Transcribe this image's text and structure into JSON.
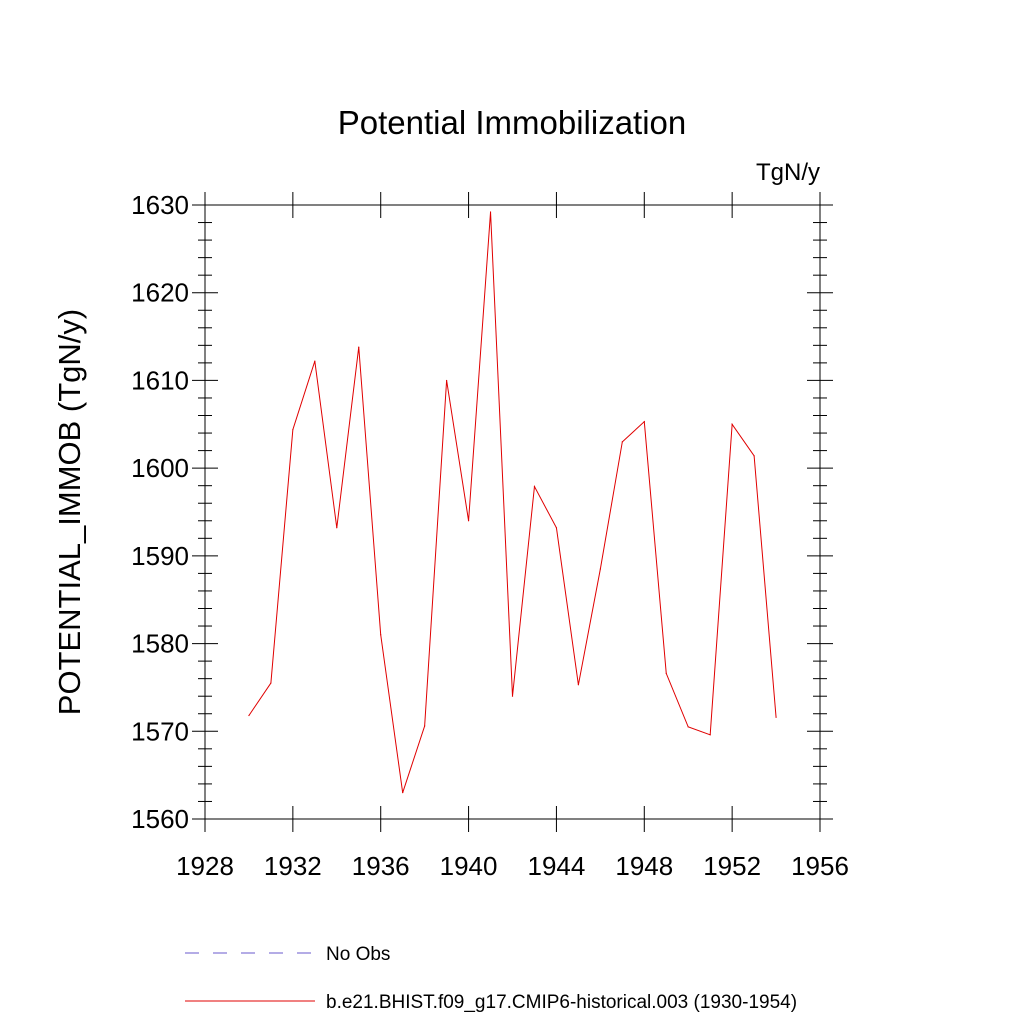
{
  "chart_data": {
    "type": "line",
    "title": "Potential Immobilization",
    "units_label": "TgN/y",
    "ylabel": "POTENTIAL_IMMOB  (TgN/y)",
    "xlabel": "",
    "xlim": [
      1928,
      1956
    ],
    "ylim": [
      1560,
      1630
    ],
    "x_ticks": [
      1928,
      1932,
      1936,
      1940,
      1944,
      1948,
      1952,
      1956
    ],
    "y_ticks": [
      1560,
      1570,
      1580,
      1590,
      1600,
      1610,
      1620,
      1630
    ],
    "grid": false,
    "legend_position": "bottom",
    "series": [
      {
        "name": "No Obs",
        "color": "#6a5acd",
        "dash": "dashed",
        "x": [],
        "values": []
      },
      {
        "name": "b.e21.BHIST.f09_g17.CMIP6-historical.003 (1930-1954)",
        "color": "#e00000",
        "dash": "solid",
        "x": [
          1930,
          1931,
          1932,
          1933,
          1934,
          1935,
          1936,
          1937,
          1938,
          1939,
          1940,
          1941,
          1942,
          1943,
          1944,
          1945,
          1946,
          1947,
          1948,
          1949,
          1950,
          1951,
          1952,
          1953,
          1954
        ],
        "values": [
          1571.8,
          1575.5,
          1604.4,
          1612.2,
          1593.2,
          1613.8,
          1581.0,
          1563.0,
          1570.6,
          1610.0,
          1594.0,
          1629.2,
          1574.0,
          1597.9,
          1593.2,
          1575.3,
          1588.5,
          1603.0,
          1605.3,
          1576.6,
          1570.5,
          1569.6,
          1605.0,
          1601.4,
          1571.6
        ]
      }
    ]
  }
}
